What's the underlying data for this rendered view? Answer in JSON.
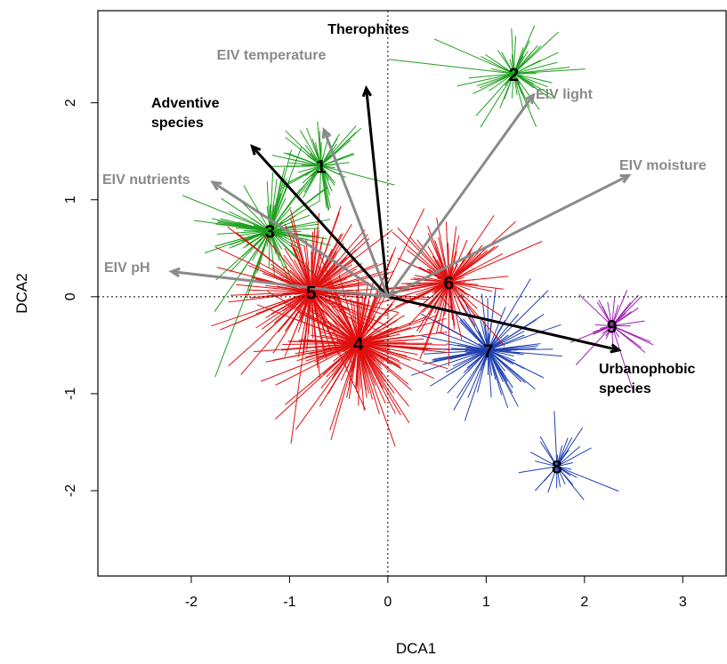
{
  "chart_data": {
    "type": "scatter",
    "subtype": "ordination-spider-plot",
    "xlabel": "DCA1",
    "ylabel": "DCA2",
    "xlim": [
      -2.95,
      3.45
    ],
    "ylim": [
      -2.88,
      2.95
    ],
    "xticks": [
      -2,
      -1,
      0,
      1,
      2,
      3
    ],
    "yticks": [
      -2,
      -1,
      0,
      1,
      2
    ],
    "reference_lines": {
      "x": 0,
      "y": 0,
      "style": "dotted"
    },
    "grid": false,
    "cluster_colors": {
      "green": "#1fa01f",
      "red": "#e01010",
      "blue": "#2040b0",
      "purple": "#a020b0"
    },
    "clusters": [
      {
        "label": "1",
        "x": -0.68,
        "y": 1.35,
        "color": "green",
        "spread": 0.6,
        "count": 70
      },
      {
        "label": "2",
        "x": 1.28,
        "y": 2.3,
        "color": "green",
        "spread": 0.7,
        "count": 60
      },
      {
        "label": "3",
        "x": -1.2,
        "y": 0.68,
        "color": "green",
        "spread": 0.8,
        "count": 110
      },
      {
        "label": "4",
        "x": -0.3,
        "y": -0.48,
        "color": "red",
        "spread": 0.9,
        "count": 230
      },
      {
        "label": "5",
        "x": -0.78,
        "y": 0.05,
        "color": "red",
        "spread": 0.9,
        "count": 200
      },
      {
        "label": "6",
        "x": 0.62,
        "y": 0.15,
        "color": "red",
        "spread": 0.7,
        "count": 130
      },
      {
        "label": "7",
        "x": 1.02,
        "y": -0.55,
        "color": "blue",
        "spread": 0.7,
        "count": 110
      },
      {
        "label": "8",
        "x": 1.72,
        "y": -1.75,
        "color": "blue",
        "spread": 0.5,
        "count": 30
      },
      {
        "label": "9",
        "x": 2.28,
        "y": -0.3,
        "color": "purple",
        "spread": 0.5,
        "count": 35
      }
    ],
    "vectors": [
      {
        "label": "Therophites",
        "x": -0.22,
        "y": 2.15,
        "color": "black"
      },
      {
        "label": "Adventive species",
        "x": -1.38,
        "y": 1.55,
        "color": "black"
      },
      {
        "label": "Urbanophobic species",
        "x": 2.35,
        "y": -0.55,
        "color": "black"
      },
      {
        "label": "EIV temperature",
        "x": -0.65,
        "y": 1.72,
        "color": "gray"
      },
      {
        "label": "EIV light",
        "x": 1.48,
        "y": 2.08,
        "color": "gray"
      },
      {
        "label": "EIV nutrients",
        "x": -1.78,
        "y": 1.18,
        "color": "gray"
      },
      {
        "label": "EIV moisture",
        "x": 2.45,
        "y": 1.25,
        "color": "gray"
      },
      {
        "label": "EIV pH",
        "x": -2.2,
        "y": 0.26,
        "color": "gray"
      }
    ]
  }
}
